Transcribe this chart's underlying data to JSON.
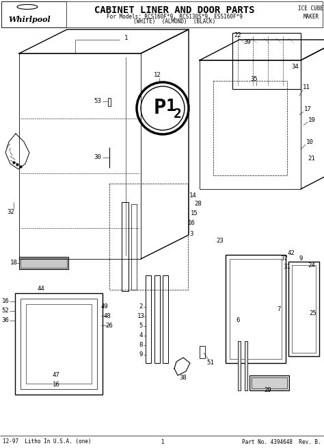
{
  "title": "CABINET LINER AND DOOR PARTS",
  "subtitle1": "For Models: RCS160F*9, RCS130S*9, ESS160F*9",
  "subtitle2": "(WHITE)  (ALMOND)  (BLACK)",
  "top_right_label": "ICE CUBE\nMAKER",
  "whirlpool_text": "Whirlpool",
  "bottom_left": "12-97  Litho In U.S.A. (one)",
  "bottom_center": "1",
  "bottom_right": "Part No. 4394648  Rev. B.",
  "bg_color": "#ffffff",
  "line_color": "#000000",
  "title_fontsize": 10,
  "subtitle_fontsize": 5.5,
  "label_fontsize": 6.5,
  "footer_fontsize": 5.5
}
